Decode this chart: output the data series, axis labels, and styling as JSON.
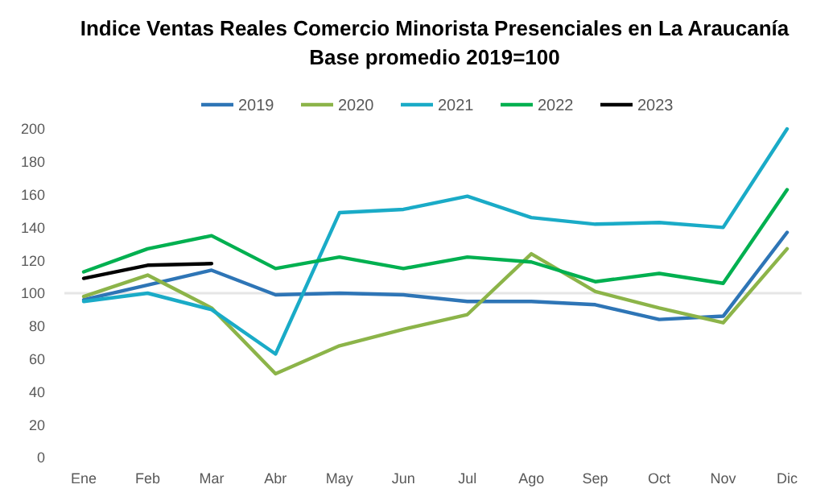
{
  "chart_data": {
    "type": "line",
    "title": "Indice Ventas Reales Comercio Minorista Presenciales en La Araucanía",
    "subtitle": "Base promedio 2019=100",
    "categories": [
      "Ene",
      "Feb",
      "Mar",
      "Abr",
      "May",
      "Jun",
      "Jul",
      "Ago",
      "Sep",
      "Oct",
      "Nov",
      "Dic"
    ],
    "series": [
      {
        "name": "2019",
        "color": "#2e75b6",
        "values": [
          96,
          105,
          114,
          99,
          100,
          99,
          95,
          95,
          93,
          84,
          86,
          137
        ]
      },
      {
        "name": "2020",
        "color": "#8cb449",
        "values": [
          98,
          111,
          91,
          51,
          68,
          78,
          87,
          124,
          101,
          91,
          82,
          127
        ]
      },
      {
        "name": "2021",
        "color": "#1aabc7",
        "values": [
          95,
          100,
          90,
          63,
          149,
          151,
          159,
          146,
          142,
          143,
          140,
          200
        ]
      },
      {
        "name": "2022",
        "color": "#00b050",
        "values": [
          113,
          127,
          135,
          115,
          122,
          115,
          122,
          119,
          107,
          112,
          106,
          163
        ]
      },
      {
        "name": "2023",
        "color": "#000000",
        "values": [
          109,
          117,
          118,
          null,
          null,
          null,
          null,
          null,
          null,
          null,
          null,
          null
        ]
      }
    ],
    "ylim": [
      0,
      200
    ],
    "yticks": [
      0,
      20,
      40,
      60,
      80,
      100,
      120,
      140,
      160,
      180,
      200
    ],
    "ref_lines": [
      {
        "axis": "y",
        "value": 100,
        "color": "#e6e6e6"
      }
    ],
    "legend": "top",
    "grid": false,
    "marker": "none",
    "line_style": "solid"
  }
}
